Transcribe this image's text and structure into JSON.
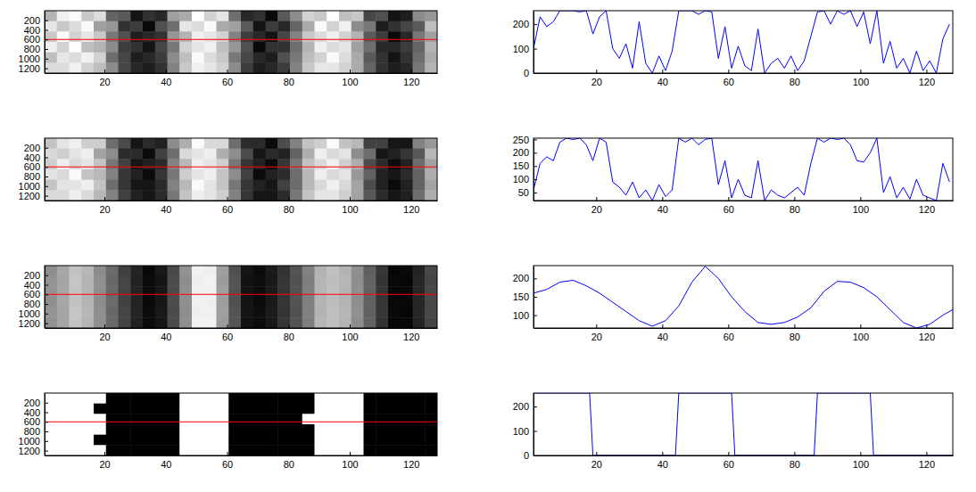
{
  "chart_data": [
    {
      "type": "heatmap",
      "xlim": [
        0.5,
        128.5
      ],
      "ylim": [
        0.5,
        1300.5
      ],
      "xticks": [
        20,
        40,
        60,
        80,
        100,
        120
      ],
      "yticks": [
        200,
        400,
        600,
        800,
        1000,
        1200
      ],
      "clim": [
        0,
        255
      ],
      "profile_row": 600,
      "color": "#ff0000",
      "cells": [
        [
          180,
          240,
          250,
          200,
          220,
          100,
          90,
          20,
          50,
          40,
          160,
          170,
          255,
          210,
          230,
          110,
          40,
          50,
          10,
          90,
          140,
          210,
          200,
          255,
          190,
          200,
          70,
          80,
          20,
          30,
          140,
          150
        ],
        [
          230,
          200,
          220,
          250,
          160,
          150,
          50,
          60,
          10,
          80,
          110,
          230,
          220,
          250,
          170,
          160,
          90,
          20,
          60,
          40,
          100,
          170,
          250,
          210,
          240,
          140,
          120,
          30,
          50,
          70,
          90,
          190
        ],
        [
          200,
          250,
          210,
          230,
          200,
          120,
          80,
          30,
          40,
          50,
          150,
          180,
          240,
          230,
          210,
          130,
          60,
          40,
          20,
          70,
          130,
          200,
          220,
          240,
          210,
          180,
          90,
          60,
          10,
          40,
          120,
          160
        ],
        [
          240,
          210,
          255,
          190,
          180,
          140,
          60,
          50,
          20,
          70,
          120,
          210,
          230,
          240,
          190,
          150,
          80,
          10,
          50,
          50,
          110,
          180,
          240,
          220,
          230,
          160,
          110,
          40,
          40,
          60,
          100,
          180
        ],
        [
          190,
          230,
          220,
          240,
          210,
          110,
          70,
          30,
          40,
          60,
          140,
          190,
          250,
          220,
          200,
          120,
          70,
          40,
          30,
          80,
          120,
          190,
          210,
          250,
          220,
          170,
          90,
          50,
          20,
          50,
          110,
          170
        ],
        [
          220,
          220,
          240,
          210,
          190,
          140,
          70,
          40,
          30,
          50,
          130,
          200,
          240,
          230,
          210,
          140,
          60,
          30,
          40,
          60,
          130,
          200,
          230,
          230,
          210,
          170,
          100,
          50,
          30,
          40,
          120,
          180
        ]
      ]
    },
    {
      "type": "line",
      "xlim": [
        1,
        128
      ],
      "ylim": [
        0,
        255
      ],
      "xticks": [
        20,
        40,
        60,
        80,
        100,
        120
      ],
      "yticks": [
        0,
        100,
        200
      ],
      "color": "#0000ff",
      "x": [
        1,
        3,
        5,
        7,
        9,
        11,
        13,
        15,
        17,
        19,
        21,
        23,
        25,
        27,
        29,
        31,
        33,
        35,
        37,
        39,
        41,
        43,
        45,
        47,
        49,
        51,
        53,
        55,
        57,
        59,
        61,
        63,
        65,
        67,
        69,
        71,
        73,
        75,
        77,
        79,
        81,
        83,
        85,
        87,
        89,
        91,
        93,
        95,
        97,
        99,
        101,
        103,
        105,
        107,
        109,
        111,
        113,
        115,
        117,
        119,
        121,
        123,
        125,
        127
      ],
      "values": [
        100,
        230,
        190,
        210,
        255,
        255,
        255,
        250,
        255,
        160,
        230,
        255,
        100,
        60,
        120,
        20,
        210,
        40,
        0,
        70,
        10,
        90,
        255,
        255,
        255,
        240,
        255,
        250,
        60,
        190,
        20,
        110,
        30,
        10,
        180,
        0,
        40,
        60,
        20,
        70,
        10,
        50,
        150,
        250,
        255,
        200,
        255,
        240,
        255,
        190,
        250,
        120,
        255,
        40,
        130,
        20,
        60,
        0,
        90,
        10,
        50,
        0,
        140,
        200
      ]
    },
    {
      "type": "heatmap",
      "xlim": [
        0.5,
        128.5
      ],
      "ylim": [
        0.5,
        1300.5
      ],
      "xticks": [
        20,
        40,
        60,
        80,
        100,
        120
      ],
      "yticks": [
        200,
        400,
        600,
        800,
        1000,
        1200
      ],
      "clim": [
        20,
        255
      ],
      "profile_row": 600,
      "color": "#ff0000",
      "cells": [
        [
          200,
          230,
          240,
          210,
          210,
          120,
          90,
          40,
          60,
          50,
          150,
          180,
          250,
          220,
          220,
          120,
          60,
          60,
          30,
          90,
          140,
          200,
          210,
          250,
          200,
          190,
          80,
          80,
          40,
          40,
          140,
          160
        ],
        [
          220,
          210,
          230,
          240,
          170,
          150,
          60,
          60,
          30,
          80,
          120,
          220,
          230,
          240,
          180,
          150,
          90,
          40,
          60,
          50,
          110,
          180,
          240,
          220,
          230,
          150,
          120,
          40,
          50,
          70,
          100,
          190
        ],
        [
          210,
          240,
          220,
          230,
          200,
          130,
          80,
          40,
          50,
          60,
          140,
          190,
          240,
          230,
          210,
          130,
          70,
          50,
          30,
          70,
          130,
          200,
          220,
          240,
          210,
          180,
          90,
          60,
          30,
          50,
          120,
          170
        ],
        [
          230,
          220,
          250,
          200,
          190,
          140,
          70,
          50,
          30,
          70,
          130,
          210,
          230,
          240,
          200,
          150,
          80,
          30,
          50,
          60,
          120,
          190,
          240,
          220,
          230,
          160,
          110,
          50,
          40,
          60,
          110,
          180
        ],
        [
          200,
          230,
          230,
          240,
          200,
          120,
          70,
          40,
          40,
          60,
          140,
          190,
          250,
          230,
          200,
          130,
          70,
          50,
          40,
          80,
          120,
          190,
          220,
          240,
          220,
          170,
          90,
          50,
          30,
          50,
          110,
          170
        ],
        [
          220,
          220,
          240,
          220,
          190,
          140,
          80,
          50,
          40,
          60,
          130,
          200,
          240,
          230,
          210,
          140,
          70,
          40,
          40,
          60,
          130,
          200,
          230,
          230,
          210,
          170,
          100,
          60,
          40,
          50,
          120,
          180
        ]
      ]
    },
    {
      "type": "line",
      "xlim": [
        1,
        128
      ],
      "ylim": [
        20,
        255
      ],
      "xticks": [
        20,
        40,
        60,
        80,
        100,
        120
      ],
      "yticks": [
        50,
        100,
        150,
        200,
        250
      ],
      "color": "#0000ff",
      "x": [
        1,
        3,
        5,
        7,
        9,
        11,
        13,
        15,
        17,
        19,
        21,
        23,
        25,
        27,
        29,
        31,
        33,
        35,
        37,
        39,
        41,
        43,
        45,
        47,
        49,
        51,
        53,
        55,
        57,
        59,
        61,
        63,
        65,
        67,
        69,
        71,
        73,
        75,
        77,
        79,
        81,
        83,
        85,
        87,
        89,
        91,
        93,
        95,
        97,
        99,
        101,
        103,
        105,
        107,
        109,
        111,
        113,
        115,
        117,
        119,
        121,
        123,
        125,
        127
      ],
      "values": [
        60,
        160,
        185,
        170,
        240,
        255,
        250,
        255,
        230,
        170,
        255,
        240,
        90,
        70,
        40,
        90,
        30,
        60,
        20,
        80,
        35,
        60,
        255,
        240,
        255,
        230,
        250,
        255,
        80,
        170,
        30,
        100,
        40,
        30,
        170,
        20,
        60,
        40,
        30,
        50,
        70,
        40,
        160,
        255,
        240,
        255,
        250,
        255,
        230,
        170,
        165,
        200,
        255,
        50,
        110,
        30,
        70,
        25,
        100,
        40,
        30,
        20,
        160,
        90
      ]
    },
    {
      "type": "heatmap",
      "xlim": [
        0.5,
        128.5
      ],
      "ylim": [
        0.5,
        1300.5
      ],
      "xticks": [
        20,
        40,
        60,
        80,
        100,
        120
      ],
      "yticks": [
        200,
        400,
        600,
        800,
        1000,
        1200
      ],
      "clim": [
        65,
        235
      ],
      "profile_row": 600,
      "color": "#ff0000",
      "cells": [
        [
          160,
          176,
          194,
          186,
          158,
          136,
          108,
          89,
          70,
          81,
          114,
          162,
          226,
          224,
          171,
          118,
          79,
          72,
          83,
          99,
          121,
          151,
          184,
          193,
          184,
          161,
          129,
          101,
          69,
          71,
          89,
          113
        ],
        [
          163,
          174,
          196,
          184,
          161,
          134,
          111,
          87,
          73,
          79,
          116,
          159,
          224,
          226,
          169,
          121,
          77,
          74,
          81,
          101,
          119,
          149,
          186,
          191,
          186,
          159,
          131,
          99,
          71,
          69,
          91,
          111
        ],
        [
          162,
          175,
          195,
          185,
          160,
          135,
          110,
          88,
          72,
          80,
          115,
          160,
          225,
          225,
          170,
          120,
          78,
          73,
          82,
          100,
          120,
          150,
          185,
          192,
          185,
          160,
          130,
          100,
          70,
          70,
          90,
          112
        ],
        [
          161,
          176,
          194,
          185,
          159,
          136,
          109,
          88,
          71,
          80,
          116,
          161,
          225,
          224,
          170,
          119,
          78,
          72,
          82,
          100,
          121,
          150,
          185,
          191,
          185,
          160,
          130,
          100,
          70,
          70,
          90,
          112
        ],
        [
          164,
          174,
          196,
          186,
          161,
          134,
          111,
          89,
          73,
          81,
          114,
          159,
          224,
          225,
          171,
          121,
          79,
          74,
          83,
          99,
          119,
          151,
          184,
          192,
          186,
          161,
          129,
          101,
          71,
          69,
          91,
          113
        ],
        [
          162,
          175,
          195,
          184,
          160,
          135,
          110,
          87,
          72,
          79,
          115,
          160,
          226,
          226,
          169,
          120,
          77,
          73,
          81,
          100,
          120,
          149,
          186,
          193,
          184,
          159,
          131,
          99,
          69,
          70,
          89,
          111
        ]
      ]
    },
    {
      "type": "line",
      "xlim": [
        1,
        128
      ],
      "ylim": [
        65,
        235
      ],
      "xticks": [
        20,
        40,
        60,
        80,
        100,
        120
      ],
      "yticks": [
        100,
        150,
        200
      ],
      "color": "#0000ff",
      "x": [
        1,
        5,
        9,
        13,
        17,
        21,
        25,
        29,
        33,
        37,
        41,
        45,
        49,
        53,
        57,
        61,
        65,
        69,
        73,
        77,
        81,
        85,
        89,
        93,
        97,
        101,
        105,
        109,
        113,
        117,
        121,
        125,
        128
      ],
      "values": [
        160,
        170,
        190,
        195,
        180,
        160,
        135,
        110,
        85,
        70,
        85,
        125,
        190,
        233,
        200,
        150,
        110,
        80,
        75,
        80,
        95,
        120,
        165,
        192,
        190,
        175,
        150,
        115,
        80,
        65,
        75,
        100,
        115
      ]
    },
    {
      "type": "heatmap",
      "xlim": [
        0.5,
        128.5
      ],
      "ylim": [
        0.5,
        1300.5
      ],
      "xticks": [
        20,
        40,
        60,
        80,
        100,
        120
      ],
      "yticks": [
        200,
        400,
        600,
        800,
        1000,
        1200
      ],
      "clim": [
        0,
        255
      ],
      "profile_row": 600,
      "color": "#ff0000",
      "cells": [
        [
          255,
          255,
          255,
          255,
          255,
          0,
          0,
          0,
          0,
          0,
          0,
          255,
          255,
          255,
          255,
          0,
          0,
          0,
          0,
          0,
          0,
          0,
          255,
          255,
          255,
          255,
          0,
          0,
          0,
          0,
          0,
          0
        ],
        [
          255,
          255,
          255,
          255,
          0,
          0,
          0,
          0,
          0,
          0,
          0,
          255,
          255,
          255,
          255,
          0,
          0,
          0,
          0,
          0,
          0,
          0,
          255,
          255,
          255,
          255,
          0,
          0,
          0,
          0,
          0,
          0
        ],
        [
          255,
          255,
          255,
          255,
          255,
          0,
          0,
          0,
          0,
          0,
          0,
          255,
          255,
          255,
          255,
          0,
          0,
          0,
          0,
          0,
          0,
          255,
          255,
          255,
          255,
          255,
          0,
          0,
          0,
          0,
          0,
          0
        ],
        [
          255,
          255,
          255,
          255,
          255,
          0,
          0,
          0,
          0,
          0,
          0,
          255,
          255,
          255,
          255,
          0,
          0,
          0,
          0,
          0,
          0,
          0,
          255,
          255,
          255,
          255,
          0,
          0,
          0,
          0,
          0,
          0
        ],
        [
          255,
          255,
          255,
          255,
          0,
          0,
          0,
          0,
          0,
          0,
          0,
          255,
          255,
          255,
          255,
          0,
          0,
          0,
          0,
          0,
          0,
          0,
          255,
          255,
          255,
          255,
          0,
          0,
          0,
          0,
          0,
          0
        ],
        [
          255,
          255,
          255,
          255,
          255,
          0,
          0,
          0,
          0,
          0,
          0,
          255,
          255,
          255,
          255,
          0,
          0,
          0,
          0,
          0,
          0,
          0,
          255,
          255,
          255,
          255,
          0,
          0,
          0,
          0,
          0,
          0
        ]
      ]
    },
    {
      "type": "line",
      "xlim": [
        1,
        128
      ],
      "ylim": [
        0,
        255
      ],
      "xticks": [
        20,
        40,
        60,
        80,
        100,
        120
      ],
      "yticks": [
        0,
        100,
        200
      ],
      "color": "#0000ff",
      "x": [
        1,
        18,
        19,
        44,
        45,
        61,
        62,
        86,
        87,
        103,
        104,
        128
      ],
      "values": [
        255,
        255,
        0,
        0,
        255,
        255,
        0,
        0,
        255,
        255,
        0,
        0
      ]
    }
  ]
}
